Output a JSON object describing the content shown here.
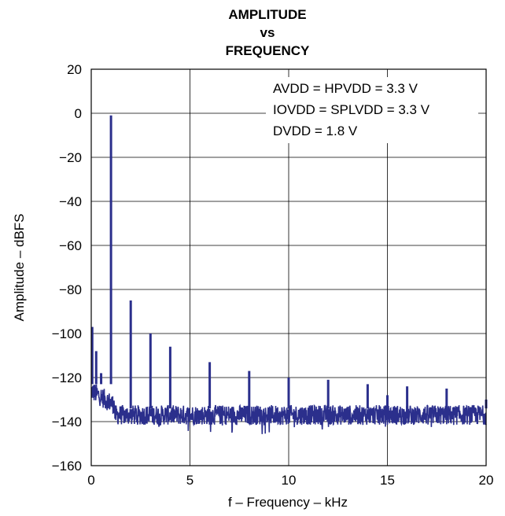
{
  "chart_data": {
    "type": "line",
    "title_lines": [
      "AMPLITUDE",
      "vs",
      "FREQUENCY"
    ],
    "xlabel": "f – Frequency – kHz",
    "ylabel": "Amplitude – dBFS",
    "xlim": [
      0,
      20
    ],
    "ylim": [
      -160,
      20
    ],
    "x_ticks": [
      0,
      5,
      10,
      15,
      20
    ],
    "y_ticks": [
      20,
      0,
      -20,
      -40,
      -60,
      -80,
      -100,
      -120,
      -140,
      -160
    ],
    "x_tick_labels": [
      "0",
      "5",
      "10",
      "15",
      "20"
    ],
    "y_tick_labels": [
      "20",
      "0",
      "−20",
      "−40",
      "−60",
      "−80",
      "−100",
      "−120",
      "−140",
      "−160"
    ],
    "grid": true,
    "annotations": [
      "AVDD = HPVDD = 3.3 V",
      "IOVDD = SPLVDD = 3.3 V",
      "DVDD = 1.8 V"
    ],
    "series": [
      {
        "color": "#2b2f8c",
        "noise_floor_db": -137,
        "noise_floor_near_dc_db": -126,
        "peaks": [
          {
            "x": 0.05,
            "y": -97
          },
          {
            "x": 0.25,
            "y": -108
          },
          {
            "x": 0.5,
            "y": -118
          },
          {
            "x": 1.0,
            "y": -1
          },
          {
            "x": 2.0,
            "y": -85
          },
          {
            "x": 3.0,
            "y": -100
          },
          {
            "x": 4.0,
            "y": -106
          },
          {
            "x": 6.0,
            "y": -113
          },
          {
            "x": 8.0,
            "y": -117
          },
          {
            "x": 10.0,
            "y": -120
          },
          {
            "x": 12.0,
            "y": -121
          },
          {
            "x": 14.0,
            "y": -123
          },
          {
            "x": 15.0,
            "y": -128
          },
          {
            "x": 16.0,
            "y": -124
          },
          {
            "x": 18.0,
            "y": -125
          },
          {
            "x": 20.0,
            "y": -130
          }
        ]
      }
    ]
  }
}
